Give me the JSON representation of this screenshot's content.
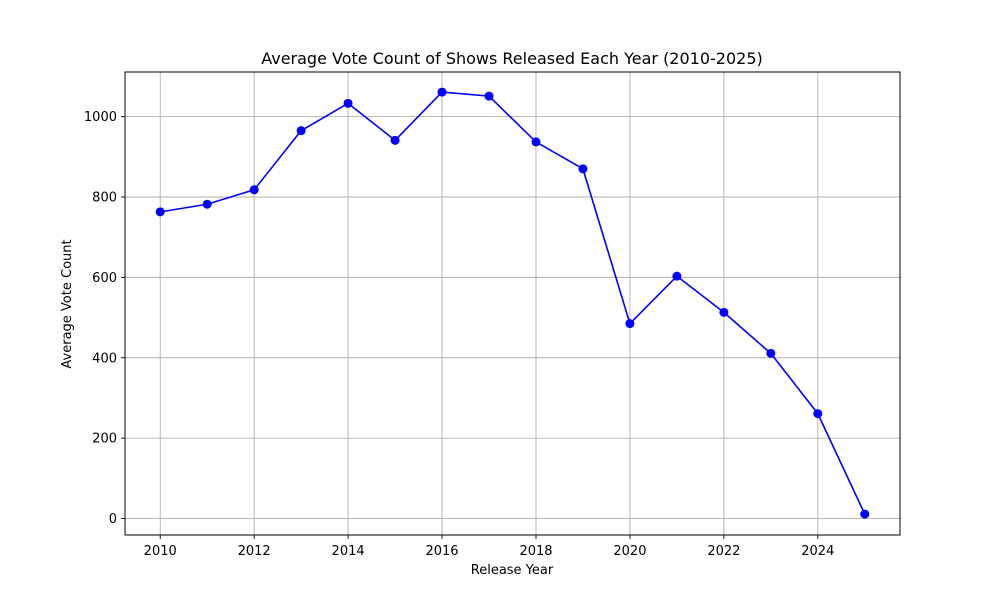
{
  "chart_data": {
    "type": "line",
    "title": "Average Vote Count of Shows Released Each Year (2010-2025)",
    "xlabel": "Release Year",
    "ylabel": "Average Vote Count",
    "x": [
      2010,
      2011,
      2012,
      2013,
      2014,
      2015,
      2016,
      2017,
      2018,
      2019,
      2020,
      2021,
      2022,
      2023,
      2024,
      2025
    ],
    "series": [
      {
        "values": [
          763,
          782,
          818,
          965,
          1033,
          941,
          1061,
          1051,
          937,
          870,
          485,
          603,
          513,
          411,
          261,
          11
        ],
        "color": "#0000ff",
        "marker": "circle"
      }
    ],
    "xticks": [
      2010,
      2012,
      2014,
      2016,
      2018,
      2020,
      2022,
      2024
    ],
    "yticks": [
      0,
      200,
      400,
      600,
      800,
      1000
    ],
    "xlim": [
      2009.25,
      2025.75
    ],
    "ylim": [
      -41,
      1111
    ],
    "grid": true,
    "legend": "none"
  }
}
